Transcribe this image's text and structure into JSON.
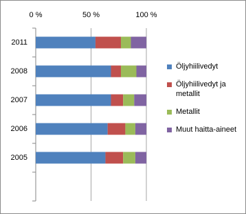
{
  "chart_data": {
    "type": "stacked_bar_horizontal",
    "categories": [
      "2011",
      "2008",
      "2007",
      "2006",
      "2005",
      null
    ],
    "series": [
      {
        "name": "Öljyhiilivedyt",
        "color": "#4f81bd",
        "values": [
          54,
          68,
          68,
          65,
          63,
          null
        ]
      },
      {
        "name": "Öljyhiilivedyt ja metallit",
        "color": "#c0504d",
        "values": [
          23,
          9,
          11,
          16,
          16,
          null
        ]
      },
      {
        "name": "Metallit",
        "color": "#9bbb59",
        "values": [
          9,
          14,
          10,
          9,
          11,
          null
        ]
      },
      {
        "name": "Muut haitta-aineet",
        "color": "#8064a2",
        "values": [
          14,
          9,
          11,
          10,
          10,
          null
        ]
      }
    ],
    "xlim": [
      0,
      100
    ],
    "xticks": [
      {
        "value": 0,
        "label": "0 %"
      },
      {
        "value": 50,
        "label": "50 %"
      },
      {
        "value": 100,
        "label": "100 %"
      }
    ],
    "grid": true
  }
}
